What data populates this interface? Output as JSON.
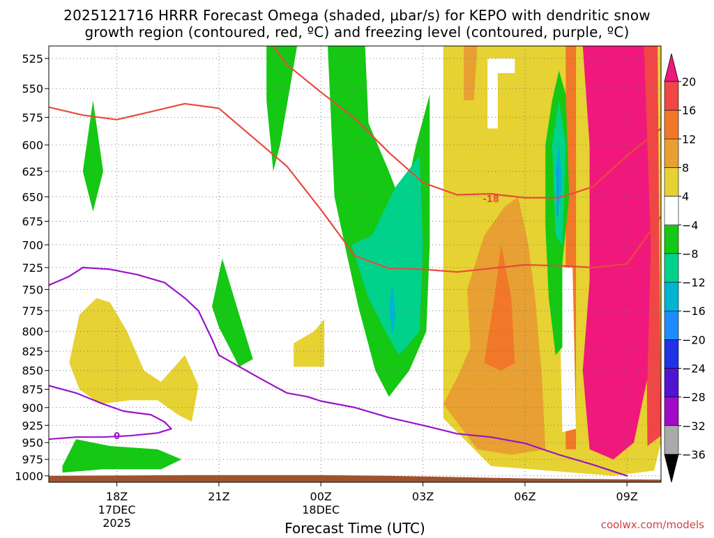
{
  "chart_data": {
    "type": "heatmap",
    "title_lines": [
      "2025121716 HRRR Forecast Omega (shaded, μbar/s) for KEPO with dendritic snow",
      "growth region (contoured, red, ºC) and freezing level (contoured, purple, ºC)"
    ],
    "xlabel": "Forecast Time (UTC)",
    "ylabel": "",
    "credit": "coolwx.com/models",
    "x_ticks": [
      {
        "hour": 2,
        "lines": [
          "18Z",
          "17DEC",
          "2025"
        ]
      },
      {
        "hour": 5,
        "lines": [
          "21Z"
        ]
      },
      {
        "hour": 8,
        "lines": [
          "00Z",
          "18DEC"
        ]
      },
      {
        "hour": 11,
        "lines": [
          "03Z"
        ]
      },
      {
        "hour": 14,
        "lines": [
          "06Z"
        ]
      },
      {
        "hour": 17,
        "lines": [
          "09Z"
        ]
      }
    ],
    "xlim": [
      0,
      18
    ],
    "y_ticks": [
      "525",
      "550",
      "575",
      "600",
      "625",
      "650",
      "675",
      "700",
      "725",
      "750",
      "775",
      "800",
      "825",
      "850",
      "875",
      "900",
      "925",
      "950",
      "975",
      "1000"
    ],
    "ylim": [
      515,
      1010
    ],
    "y_scale": "log",
    "grid": true,
    "colorbar": {
      "labels": [
        "20",
        "16",
        "12",
        "8",
        "4",
        "−4",
        "−8",
        "−12",
        "−16",
        "−20",
        "−24",
        "−28",
        "−32",
        "−36"
      ],
      "colors": [
        "#f0187c",
        "#f04646",
        "#f07828",
        "#e8a032",
        "#e6d232",
        "#ffffff",
        "#14c814",
        "#00d28c",
        "#00b4d2",
        "#1e8cff",
        "#1e32e6",
        "#5014d2",
        "#a00ac8",
        "#aaaaaa",
        "#000000"
      ]
    },
    "omega_regions": [
      {
        "value": 4,
        "color": "#e6d232",
        "points": [
          [
            11.6,
            515
          ],
          [
            11.6,
            915
          ],
          [
            13,
            985
          ],
          [
            16.6,
            1000
          ],
          [
            17.8,
            992
          ],
          [
            18,
            950
          ],
          [
            18,
            515
          ]
        ]
      },
      {
        "value": 4,
        "color": "#e6d232",
        "points": [
          [
            0.6,
            840
          ],
          [
            0.9,
            780
          ],
          [
            1.4,
            760
          ],
          [
            1.8,
            765
          ],
          [
            2.3,
            800
          ],
          [
            2.8,
            850
          ],
          [
            3.3,
            865
          ],
          [
            4,
            830
          ],
          [
            4.4,
            870
          ],
          [
            4.2,
            920
          ],
          [
            3.8,
            910
          ],
          [
            3.2,
            890
          ],
          [
            2.4,
            890
          ],
          [
            1.5,
            895
          ],
          [
            0.9,
            875
          ]
        ]
      },
      {
        "value": 4,
        "color": "#e6d232",
        "points": [
          [
            7.2,
            815
          ],
          [
            7.8,
            800
          ],
          [
            8.1,
            785
          ],
          [
            8.1,
            845
          ],
          [
            7.2,
            845
          ]
        ]
      },
      {
        "value": 8,
        "color": "#e8a032",
        "points": [
          [
            11.6,
            895
          ],
          [
            12,
            860
          ],
          [
            12.4,
            820
          ],
          [
            12.3,
            750
          ],
          [
            12.8,
            690
          ],
          [
            13.4,
            660
          ],
          [
            13.8,
            650
          ],
          [
            14.1,
            700
          ],
          [
            14.3,
            760
          ],
          [
            14.5,
            860
          ],
          [
            14.6,
            960
          ],
          [
            13.6,
            968
          ],
          [
            12.6,
            960
          ]
        ]
      },
      {
        "value": 8,
        "color": "#e8a032",
        "points": [
          [
            12.2,
            515
          ],
          [
            12.6,
            515
          ],
          [
            12.5,
            560
          ],
          [
            12.2,
            560
          ]
        ]
      },
      {
        "value": 12,
        "color": "#f07828",
        "points": [
          [
            12.8,
            840
          ],
          [
            13.1,
            760
          ],
          [
            13.3,
            700
          ],
          [
            13.6,
            760
          ],
          [
            13.7,
            840
          ],
          [
            13.3,
            850
          ]
        ]
      },
      {
        "value": 12,
        "color": "#f07828",
        "points": [
          [
            15.2,
            515
          ],
          [
            15.5,
            515
          ],
          [
            15.5,
            960
          ],
          [
            15.2,
            960
          ]
        ]
      },
      {
        "value": 16,
        "color": "#f04646",
        "points": [
          [
            17.5,
            515
          ],
          [
            17.9,
            515
          ],
          [
            18,
            940
          ],
          [
            17.6,
            955
          ]
        ]
      },
      {
        "value": 20,
        "color": "#f0187c",
        "points": [
          [
            15.7,
            515
          ],
          [
            17.5,
            515
          ],
          [
            17.7,
            700
          ],
          [
            17.6,
            860
          ],
          [
            17.2,
            950
          ],
          [
            16.6,
            975
          ],
          [
            15.9,
            960
          ],
          [
            15.7,
            850
          ],
          [
            15.9,
            740
          ],
          [
            15.9,
            600
          ]
        ]
      },
      {
        "value": -4,
        "color": "#ffffff",
        "points": [
          [
            12.9,
            525
          ],
          [
            13.7,
            525
          ],
          [
            13.7,
            537
          ],
          [
            13.2,
            537
          ],
          [
            13.2,
            585
          ],
          [
            12.9,
            585
          ]
        ]
      },
      {
        "value": -4,
        "color": "#ffffff",
        "points": [
          [
            15,
            725
          ],
          [
            15.4,
            725
          ],
          [
            15.5,
            930
          ],
          [
            15.1,
            935
          ]
        ]
      },
      {
        "value": -8,
        "color": "#14c814",
        "points": [
          [
            1,
            625
          ],
          [
            1.3,
            560
          ],
          [
            1.6,
            625
          ],
          [
            1.3,
            665
          ]
        ]
      },
      {
        "value": -8,
        "color": "#14c814",
        "points": [
          [
            0.4,
            985
          ],
          [
            0.8,
            945
          ],
          [
            1.8,
            955
          ],
          [
            3.2,
            960
          ],
          [
            3.9,
            975
          ],
          [
            3.3,
            990
          ],
          [
            1.6,
            990
          ],
          [
            0.4,
            995
          ]
        ]
      },
      {
        "value": -8,
        "color": "#14c814",
        "points": [
          [
            4.8,
            770
          ],
          [
            5.1,
            715
          ],
          [
            5.6,
            780
          ],
          [
            6,
            835
          ],
          [
            5.6,
            845
          ],
          [
            5,
            795
          ]
        ]
      },
      {
        "value": -8,
        "color": "#14c814",
        "points": [
          [
            6.4,
            515
          ],
          [
            7.3,
            515
          ],
          [
            6.8,
            600
          ],
          [
            6.6,
            625
          ],
          [
            6.4,
            560
          ]
        ]
      },
      {
        "value": -8,
        "color": "#14c814",
        "points": [
          [
            8.2,
            515
          ],
          [
            9.3,
            515
          ],
          [
            9.4,
            580
          ],
          [
            10,
            625
          ],
          [
            10.4,
            660
          ],
          [
            10.8,
            600
          ],
          [
            11.2,
            555
          ],
          [
            11.2,
            700
          ],
          [
            11.1,
            800
          ],
          [
            10.6,
            850
          ],
          [
            10,
            885
          ],
          [
            9.6,
            850
          ],
          [
            9.1,
            770
          ],
          [
            8.7,
            700
          ],
          [
            8.4,
            650
          ]
        ]
      },
      {
        "value": -8,
        "color": "#14c814",
        "points": [
          [
            14.6,
            600
          ],
          [
            14.8,
            560
          ],
          [
            15,
            535
          ],
          [
            15.2,
            555
          ],
          [
            15.3,
            650
          ],
          [
            15.1,
            720
          ],
          [
            15.1,
            820
          ],
          [
            14.9,
            830
          ],
          [
            14.7,
            760
          ],
          [
            14.6,
            680
          ]
        ]
      },
      {
        "value": -12,
        "color": "#00d28c",
        "points": [
          [
            8.9,
            700
          ],
          [
            9.5,
            690
          ],
          [
            10.2,
            640
          ],
          [
            10.9,
            610
          ],
          [
            11,
            700
          ],
          [
            10.9,
            800
          ],
          [
            10.3,
            830
          ],
          [
            9.9,
            800
          ],
          [
            9.4,
            760
          ]
        ]
      },
      {
        "value": -12,
        "color": "#00d28c",
        "points": [
          [
            14.8,
            600
          ],
          [
            15,
            560
          ],
          [
            15.2,
            600
          ],
          [
            15.1,
            700
          ],
          [
            14.9,
            690
          ]
        ]
      },
      {
        "value": -16,
        "color": "#00b4d2",
        "points": [
          [
            10,
            770
          ],
          [
            10.1,
            745
          ],
          [
            10.2,
            780
          ],
          [
            10.1,
            805
          ]
        ]
      },
      {
        "value": -16,
        "color": "#00b4d2",
        "points": [
          [
            14.9,
            620
          ],
          [
            15,
            600
          ],
          [
            15.1,
            640
          ],
          [
            15,
            660
          ]
        ]
      },
      {
        "value": -20,
        "color": "#1e8cff",
        "points": [
          [
            14.93,
            620
          ],
          [
            14.98,
            620
          ],
          [
            14.98,
            670
          ],
          [
            14.93,
            670
          ]
        ]
      }
    ],
    "temperature_contours": [
      {
        "label": "-18",
        "color": "#e84a3c",
        "label_at": [
          13,
          652
        ],
        "points": [
          [
            0,
            566
          ],
          [
            1,
            573
          ],
          [
            2,
            577
          ],
          [
            3,
            570
          ],
          [
            4,
            563
          ],
          [
            5,
            567
          ],
          [
            6,
            593
          ],
          [
            7,
            620
          ],
          [
            8,
            663
          ],
          [
            9,
            712
          ],
          [
            10,
            726
          ],
          [
            11,
            727
          ],
          [
            12,
            730
          ],
          [
            13,
            726
          ],
          [
            14,
            722
          ],
          [
            15,
            723
          ],
          [
            16,
            725
          ],
          [
            17,
            721
          ],
          [
            18,
            670
          ]
        ]
      },
      {
        "label": "",
        "color": "#e84a3c",
        "points": [
          [
            6.6,
            515
          ],
          [
            7,
            530
          ],
          [
            8,
            553
          ],
          [
            9,
            576
          ],
          [
            10,
            607
          ],
          [
            11,
            636
          ],
          [
            12,
            648
          ],
          [
            13,
            647
          ],
          [
            14,
            651
          ],
          [
            15,
            651
          ],
          [
            16,
            640
          ],
          [
            17,
            610
          ],
          [
            18,
            585
          ]
        ]
      }
    ],
    "freezing_contours": [
      {
        "label": "0",
        "color": "#9a14c8",
        "label_at": [
          2,
          940
        ],
        "points": [
          [
            0,
            745
          ],
          [
            0.6,
            735
          ],
          [
            1,
            725
          ],
          [
            1.8,
            727
          ],
          [
            2.6,
            733
          ],
          [
            3.4,
            742
          ],
          [
            4,
            760
          ],
          [
            4.4,
            775
          ],
          [
            4.8,
            810
          ],
          [
            5,
            830
          ],
          [
            5.6,
            845
          ],
          [
            6,
            855
          ],
          [
            6.6,
            870
          ],
          [
            7,
            880
          ],
          [
            7.6,
            885
          ],
          [
            8,
            891
          ],
          [
            9,
            900
          ],
          [
            10,
            914
          ],
          [
            11,
            925
          ],
          [
            12,
            937
          ],
          [
            13,
            942
          ],
          [
            14,
            951
          ],
          [
            15,
            968
          ],
          [
            16,
            983
          ],
          [
            17,
            1000
          ]
        ]
      },
      {
        "label": "",
        "color": "#9a14c8",
        "points": [
          [
            0,
            870
          ],
          [
            0.8,
            880
          ],
          [
            1.6,
            895
          ],
          [
            2.2,
            905
          ],
          [
            3,
            910
          ],
          [
            3.4,
            920
          ],
          [
            3.6,
            930
          ],
          [
            3.2,
            936
          ],
          [
            2.4,
            940
          ],
          [
            1.6,
            942
          ],
          [
            0.8,
            942
          ],
          [
            0,
            945
          ]
        ]
      }
    ],
    "terrain": {
      "color": "#a0522d",
      "top": [
        [
          0,
          1000
        ],
        [
          4,
          999
        ],
        [
          8,
          999
        ],
        [
          10,
          1000
        ],
        [
          12,
          1002
        ],
        [
          14,
          1004
        ],
        [
          16,
          1005
        ],
        [
          18,
          1006
        ]
      ]
    }
  }
}
